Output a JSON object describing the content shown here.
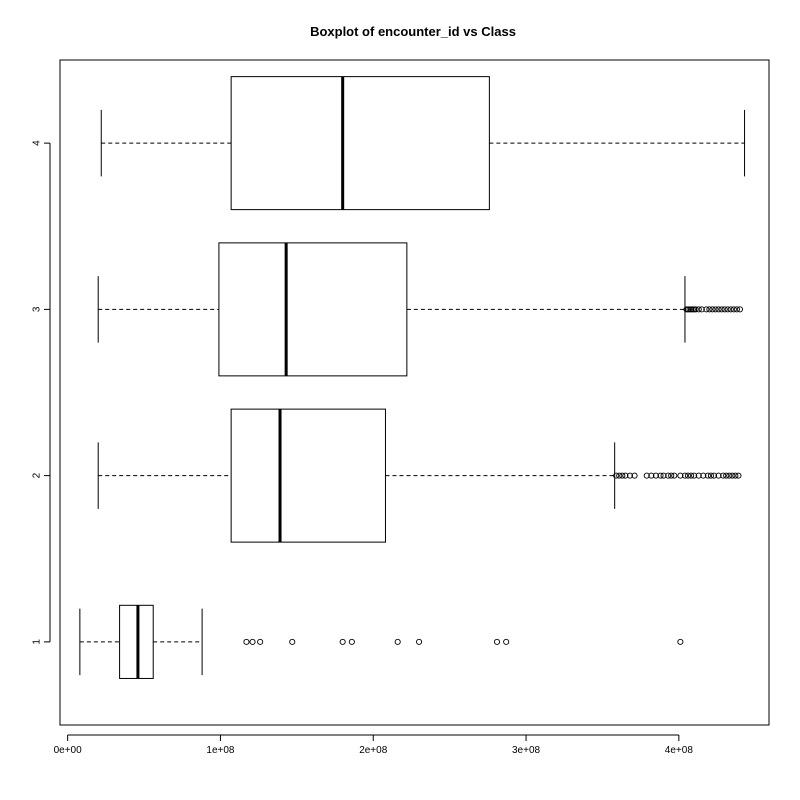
{
  "chart_data": {
    "type": "boxplot",
    "orientation": "horizontal",
    "title": "Boxplot of encounter_id vs Class",
    "xlabel": "",
    "ylabel": "",
    "x_ticks": [
      {
        "value": 0,
        "label": "0e+00"
      },
      {
        "value": 100000000,
        "label": "1e+08"
      },
      {
        "value": 200000000,
        "label": "2e+08"
      },
      {
        "value": 300000000,
        "label": "3e+08"
      },
      {
        "value": 400000000,
        "label": "4e+08"
      }
    ],
    "xlim": [
      -5000000,
      459000000
    ],
    "ylim": [
      0.5,
      4.5
    ],
    "grid": false,
    "groups": [
      {
        "label": "1",
        "whisker_low": 8000000,
        "q1": 34000000,
        "median": 46000000,
        "q3": 56000000,
        "whisker_high": 88000000,
        "outliers": [
          117000000,
          121000000,
          126000000,
          147000000,
          180000000,
          186000000,
          216000000,
          230000000,
          281000000,
          287000000,
          401000000
        ]
      },
      {
        "label": "2",
        "whisker_low": 20000000,
        "q1": 107000000,
        "median": 139000000,
        "q3": 208000000,
        "whisker_high": 358000000,
        "outliers": [
          359000000,
          361000000,
          363000000,
          365000000,
          368000000,
          371000000,
          379000000,
          382000000,
          385000000,
          388000000,
          390000000,
          393000000,
          395000000,
          397000000,
          401000000,
          404000000,
          406000000,
          408000000,
          410000000,
          413000000,
          416000000,
          419000000,
          421000000,
          423000000,
          426000000,
          429000000,
          431000000,
          433000000,
          435000000,
          437000000,
          439000000
        ]
      },
      {
        "label": "3",
        "whisker_low": 20000000,
        "q1": 99000000,
        "median": 143000000,
        "q3": 222000000,
        "whisker_high": 404000000,
        "outliers": [
          405000000,
          406000000,
          407000000,
          408000000,
          409000000,
          410000000,
          411000000,
          413000000,
          415000000,
          418000000,
          420000000,
          422000000,
          424000000,
          426000000,
          428000000,
          430000000,
          432000000,
          434000000,
          436000000,
          438000000,
          440000000
        ]
      },
      {
        "label": "4",
        "whisker_low": 22000000,
        "q1": 107000000,
        "median": 180000000,
        "q3": 276000000,
        "whisker_high": 443000000,
        "outliers": []
      }
    ]
  }
}
